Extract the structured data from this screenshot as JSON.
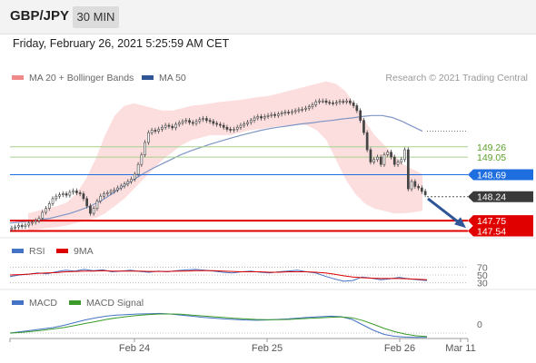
{
  "header": {
    "symbol": "GBP/JPY",
    "timeframe": "30 MIN"
  },
  "datetime": "Friday, February 26, 2021 5:25:59 AM CET",
  "legend": {
    "bollinger": {
      "label": "MA 20 + Bollinger Bands",
      "color": "#f08a8a"
    },
    "ma50": {
      "label": "MA 50",
      "color": "#2f5597"
    },
    "rsi": {
      "label": "RSI",
      "color": "#4472c4"
    },
    "rsi_ma": {
      "label": "9MA",
      "color": "#dd0000"
    },
    "macd": {
      "label": "MACD",
      "color": "#4472c4"
    },
    "macd_signal": {
      "label": "MACD Signal",
      "color": "#3a9a2a"
    }
  },
  "copyright": "Research © 2021 Trading Central",
  "colors": {
    "up": "#4a4a4a",
    "down": "#4a4a4a",
    "support": "#e00000",
    "resistance": "#7ab648",
    "pivot": "#1f6ee0",
    "current": "#333333"
  },
  "chart_data": {
    "type": "candlestick",
    "x_labels": [
      "Feb 24",
      "Feb 25",
      "Feb 26",
      "Mar 11"
    ],
    "price_levels": [
      {
        "label": "149.26",
        "value": 149.26,
        "kind": "resistance"
      },
      {
        "label": "149.05",
        "value": 149.05,
        "kind": "resistance"
      },
      {
        "label": "148.69",
        "value": 148.69,
        "kind": "pivot"
      },
      {
        "label": "148.24",
        "value": 148.24,
        "kind": "current"
      },
      {
        "label": "147.75",
        "value": 147.75,
        "kind": "support"
      },
      {
        "label": "147.54",
        "value": 147.54,
        "kind": "support"
      }
    ],
    "ylim": [
      147.4,
      150.5
    ],
    "candles_close": [
      147.6,
      147.62,
      147.65,
      147.63,
      147.66,
      147.7,
      147.72,
      147.75,
      147.8,
      147.92,
      148.0,
      148.1,
      148.2,
      148.25,
      148.28,
      148.3,
      148.27,
      148.33,
      148.36,
      148.32,
      148.3,
      148.2,
      148.05,
      147.9,
      148.0,
      148.15,
      148.25,
      148.3,
      148.32,
      148.35,
      148.38,
      148.42,
      148.46,
      148.5,
      148.55,
      148.6,
      148.7,
      148.9,
      149.1,
      149.35,
      149.55,
      149.6,
      149.58,
      149.62,
      149.66,
      149.7,
      149.68,
      149.65,
      149.72,
      149.75,
      149.78,
      149.8,
      149.76,
      149.74,
      149.78,
      149.82,
      149.84,
      149.8,
      149.78,
      149.74,
      149.72,
      149.7,
      149.66,
      149.62,
      149.6,
      149.62,
      149.66,
      149.7,
      149.73,
      149.76,
      149.8,
      149.85,
      149.88,
      149.85,
      149.88,
      149.9,
      149.92,
      149.9,
      149.93,
      149.95,
      149.97,
      149.96,
      149.98,
      150.0,
      150.02,
      150.03,
      150.05,
      150.08,
      150.12,
      150.18,
      150.2,
      150.2,
      150.17,
      150.16,
      150.15,
      150.17,
      150.19,
      150.18,
      150.2,
      150.16,
      150.1,
      150.0,
      149.8,
      149.55,
      149.2,
      148.95,
      149.0,
      149.05,
      148.9,
      149.1,
      149.15,
      149.05,
      148.9,
      148.95,
      149.0,
      149.2,
      148.4,
      148.55,
      148.45,
      148.42,
      148.35,
      148.28
    ],
    "ma50": [
      147.7,
      147.72,
      147.74,
      147.77,
      147.8,
      147.85,
      147.9,
      147.97,
      148.05,
      148.15,
      148.28,
      148.42,
      148.55,
      148.68,
      148.8,
      148.9,
      149.0,
      149.1,
      149.18,
      149.25,
      149.32,
      149.38,
      149.44,
      149.5,
      149.55,
      149.6,
      149.64,
      149.67,
      149.7,
      149.73,
      149.75,
      149.78,
      149.8,
      149.83,
      149.85,
      149.88,
      149.9,
      149.9,
      149.86,
      149.78,
      149.68,
      149.58
    ],
    "bb_upper": [
      147.9,
      147.95,
      148.0,
      148.05,
      148.12,
      148.3,
      148.6,
      149.0,
      149.5,
      149.9,
      150.1,
      150.15,
      150.1,
      150.05,
      150.0,
      150.0,
      150.05,
      150.1,
      150.12,
      150.15,
      150.18,
      150.2,
      150.22,
      150.25,
      150.28,
      150.3,
      150.35,
      150.4,
      150.45,
      150.5,
      150.55,
      150.6,
      150.55,
      150.4,
      150.1,
      149.8,
      149.5,
      149.3,
      149.1,
      148.9,
      148.8,
      148.7
    ],
    "bb_lower": [
      147.55,
      147.57,
      147.6,
      147.62,
      147.65,
      147.7,
      147.75,
      147.8,
      147.9,
      148.05,
      148.2,
      148.4,
      148.6,
      148.8,
      149.0,
      149.15,
      149.3,
      149.4,
      149.45,
      149.5,
      149.5,
      149.5,
      149.55,
      149.6,
      149.62,
      149.65,
      149.68,
      149.7,
      149.72,
      149.7,
      149.6,
      149.4,
      149.0,
      148.6,
      148.3,
      148.1,
      148.0,
      147.95,
      147.9,
      147.9,
      147.92,
      147.95
    ],
    "rsi": {
      "levels": [
        "70",
        "50",
        "30"
      ],
      "values": [
        46,
        50,
        52,
        55,
        53,
        58,
        62,
        60,
        64,
        61,
        63,
        58,
        60,
        62,
        59,
        57,
        60,
        58,
        61,
        63,
        64,
        62,
        60,
        57,
        55,
        58,
        60,
        57,
        55,
        58,
        60,
        62,
        58,
        55,
        47,
        40,
        34,
        36,
        45,
        42,
        38,
        40,
        44,
        40,
        38,
        36
      ]
    },
    "rsi_ma": [
      50,
      51,
      52,
      54,
      55,
      56,
      58,
      59,
      60,
      60,
      61,
      60,
      60,
      60,
      60,
      59,
      59,
      59,
      60,
      60,
      61,
      61,
      61,
      60,
      59,
      58,
      58,
      58,
      57,
      57,
      58,
      58,
      58,
      57,
      55,
      52,
      48,
      45,
      43,
      42,
      41,
      41,
      41,
      40,
      39,
      38
    ],
    "macd": {
      "zero_label": "0",
      "values": [
        0.0,
        0.05,
        0.1,
        0.15,
        0.2,
        0.28,
        0.38,
        0.48,
        0.56,
        0.62,
        0.66,
        0.68,
        0.7,
        0.71,
        0.72,
        0.7,
        0.66,
        0.62,
        0.58,
        0.55,
        0.52,
        0.5,
        0.48,
        0.47,
        0.48,
        0.5,
        0.52,
        0.55,
        0.58,
        0.6,
        0.62,
        0.6,
        0.5,
        0.3,
        0.1,
        -0.05,
        -0.12,
        -0.15,
        -0.16,
        -0.16
      ]
    },
    "macd_signal": [
      0.0,
      0.02,
      0.06,
      0.1,
      0.15,
      0.2,
      0.27,
      0.35,
      0.42,
      0.5,
      0.56,
      0.61,
      0.65,
      0.68,
      0.7,
      0.7,
      0.69,
      0.66,
      0.63,
      0.6,
      0.57,
      0.54,
      0.52,
      0.5,
      0.49,
      0.49,
      0.5,
      0.52,
      0.54,
      0.56,
      0.58,
      0.59,
      0.56,
      0.46,
      0.32,
      0.17,
      0.05,
      -0.04,
      -0.1,
      -0.13
    ]
  }
}
